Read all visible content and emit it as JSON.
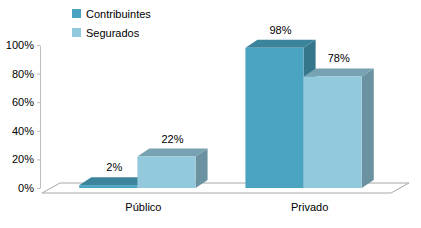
{
  "chart_data": {
    "type": "bar",
    "categories": [
      "Público",
      "Privado"
    ],
    "series": [
      {
        "name": "Contribuintes",
        "color": "#4aa3c0",
        "values": [
          2,
          98
        ],
        "value_labels": [
          "2%",
          "98%"
        ]
      },
      {
        "name": "Segurados",
        "color": "#93c9dc",
        "values": [
          22,
          78
        ],
        "value_labels": [
          "22%",
          "78%"
        ]
      }
    ],
    "ylim": [
      0,
      100
    ],
    "yticks": [
      {
        "value": 0,
        "label": "0%"
      },
      {
        "value": 20,
        "label": "20%"
      },
      {
        "value": 40,
        "label": "40%"
      },
      {
        "value": 60,
        "label": "60%"
      },
      {
        "value": 80,
        "label": "80%"
      },
      {
        "value": 100,
        "label": "100%"
      }
    ],
    "grid": false,
    "legend": "top-left",
    "data_labels": true
  }
}
